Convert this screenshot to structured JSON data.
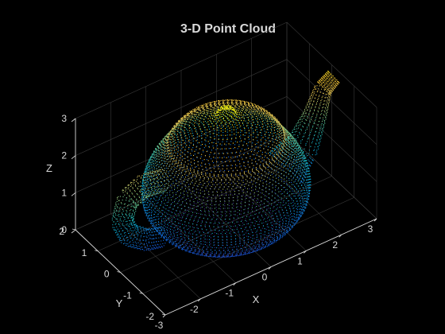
{
  "chart_data": {
    "type": "scatter",
    "subtype": "3d-point-cloud",
    "title": "3-D Point Cloud",
    "xlabel": "X",
    "ylabel": "Y",
    "zlabel": "Z",
    "xlim": [
      -3,
      3
    ],
    "ylim": [
      -2,
      2
    ],
    "zlim": [
      0,
      3
    ],
    "xticks": [
      "-3",
      "-2",
      "-1",
      "0",
      "1",
      "2",
      "3"
    ],
    "yticks": [
      "-2",
      "-1",
      "0",
      "1",
      "2"
    ],
    "zticks": [
      "0",
      "1",
      "2",
      "3"
    ],
    "grid": true,
    "background": "#000000",
    "axis_color": "#d9d9d9",
    "grid_color": "#3a3a3a",
    "colormap": "parula",
    "colormap_stops": [
      "#352a87",
      "#0f5cdd",
      "#1481d6",
      "#06a4ca",
      "#2eb7a4",
      "#87bf77",
      "#d1bb59",
      "#fec832",
      "#f9fb0e"
    ],
    "object": "teapot",
    "series": [
      {
        "part": "body",
        "profile_z": [
          0.0,
          0.15,
          0.4,
          0.7,
          1.0,
          1.3,
          1.6,
          1.85,
          2.05,
          2.2,
          2.3
        ],
        "profile_r": [
          1.15,
          1.45,
          1.78,
          1.98,
          2.03,
          1.98,
          1.85,
          1.68,
          1.52,
          1.42,
          1.38
        ]
      },
      {
        "part": "lid",
        "profile_z": [
          2.3,
          2.45,
          2.6,
          2.72,
          2.82,
          2.9,
          2.98,
          3.05,
          3.1,
          3.13
        ],
        "profile_r": [
          1.34,
          1.25,
          1.05,
          0.72,
          0.42,
          0.28,
          0.22,
          0.2,
          0.14,
          0.0
        ]
      },
      {
        "part": "spout",
        "path": [
          [
            1.7,
            0.0,
            0.8
          ],
          [
            2.15,
            0.0,
            1.15
          ],
          [
            2.5,
            0.0,
            1.8
          ],
          [
            2.75,
            0.0,
            2.45
          ],
          [
            3.05,
            0.0,
            2.65
          ]
        ],
        "radius": [
          0.55,
          0.42,
          0.3,
          0.22,
          0.2
        ]
      },
      {
        "part": "handle",
        "path": [
          [
            -1.8,
            0.0,
            1.95
          ],
          [
            -2.35,
            0.0,
            2.05
          ],
          [
            -2.8,
            0.0,
            1.85
          ],
          [
            -2.95,
            0.0,
            1.35
          ],
          [
            -2.75,
            0.0,
            0.9
          ],
          [
            -2.25,
            0.0,
            0.55
          ],
          [
            -1.85,
            0.0,
            0.45
          ]
        ],
        "radius": [
          0.26,
          0.27,
          0.27,
          0.26,
          0.25,
          0.24,
          0.23
        ]
      }
    ]
  }
}
